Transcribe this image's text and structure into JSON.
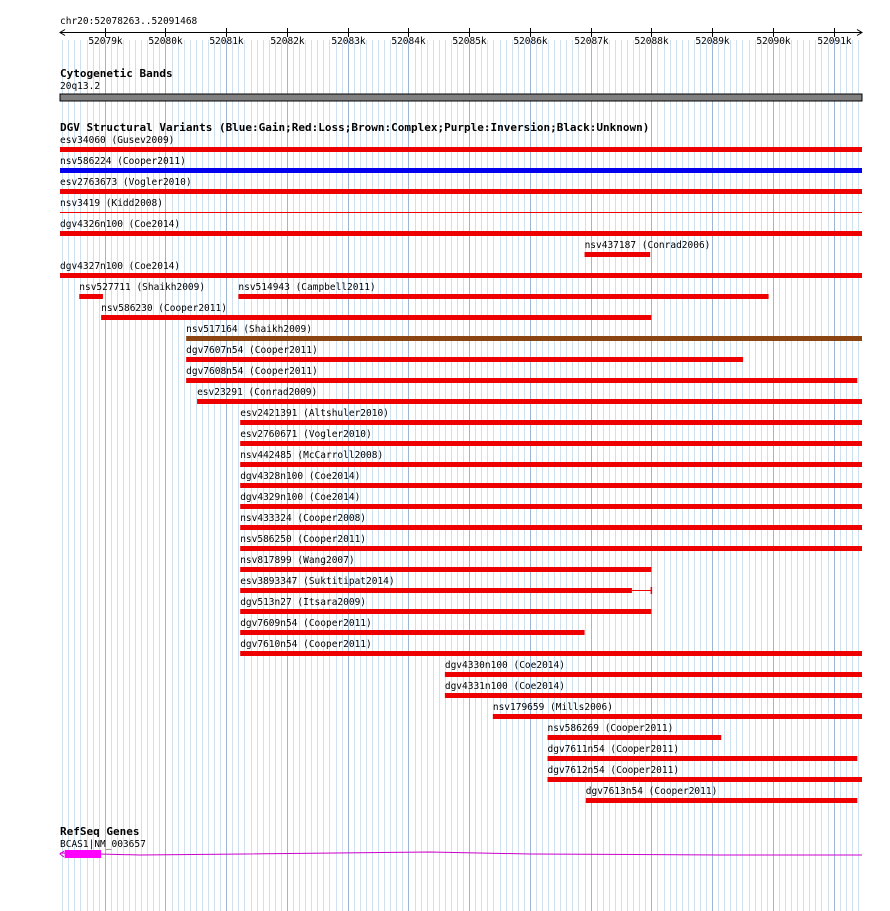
{
  "position": {
    "label": "chr20:52078263..52091468",
    "start": 52078263,
    "end": 52091468,
    "ticks": [
      "52079k",
      "52080k",
      "52081k",
      "52082k",
      "52083k",
      "52084k",
      "52085k",
      "52086k",
      "52087k",
      "52088k",
      "52089k",
      "52090k",
      "52091k"
    ]
  },
  "cytoband": {
    "title": "Cytogenetic Bands",
    "band": "20q13.2",
    "band_start": 52078263,
    "band_end": 52091468,
    "color": "#808080"
  },
  "dgv": {
    "title": "DGV Structural Variants (Blue:Gain;Red:Loss;Brown:Complex;Purple:Inversion;Black:Unknown)",
    "colors": {
      "gain": "#0000ee",
      "loss": "#ee0000",
      "complex": "#8b4513"
    },
    "variants": [
      {
        "label": "esv34060 (Gusev2009)",
        "type": "loss",
        "start": 52078263,
        "end": 52091468
      },
      {
        "label": "nsv586224 (Cooper2011)",
        "type": "gain",
        "start": 52078263,
        "end": 52091468
      },
      {
        "label": "esv2763673 (Vogler2010)",
        "type": "loss",
        "start": 52078263,
        "end": 52091468
      },
      {
        "label": "nsv3419 (Kidd2008)",
        "type": "loss",
        "start": 52078263,
        "end": 52091468,
        "thin": true
      },
      {
        "label": "dgv4326n100 (Coe2014)",
        "type": "loss",
        "start": 52078263,
        "end": 52091468
      },
      {
        "label": "nsv437187 (Conrad2006)",
        "type": "loss",
        "start": 52086900,
        "end": 52087980
      },
      {
        "label": "dgv4327n100 (Coe2014)",
        "type": "loss",
        "start": 52078263,
        "end": 52091468
      },
      {
        "label": "nsv527711 (Shaikh2009)",
        "type": "loss",
        "start": 52078580,
        "end": 52078970,
        "row": 7
      },
      {
        "label": "nsv514943 (Campbell2011)",
        "type": "loss",
        "start": 52081200,
        "end": 52089930,
        "row": 7
      },
      {
        "label": "nsv586230 (Cooper2011)",
        "type": "loss",
        "start": 52078940,
        "end": 52088000
      },
      {
        "label": "nsv517164 (Shaikh2009)",
        "type": "complex",
        "start": 52080340,
        "end": 52091468
      },
      {
        "label": "dgv7607n54 (Cooper2011)",
        "type": "loss",
        "start": 52080340,
        "end": 52089510
      },
      {
        "label": "dgv7608n54 (Cooper2011)",
        "type": "loss",
        "start": 52080340,
        "end": 52091390
      },
      {
        "label": "esv23291 (Conrad2009)",
        "type": "loss",
        "start": 52080520,
        "end": 52091468
      },
      {
        "label": "esv2421391 (Altshuler2010)",
        "type": "loss",
        "start": 52081230,
        "end": 52091468
      },
      {
        "label": "esv2760671 (Vogler2010)",
        "type": "loss",
        "start": 52081230,
        "end": 52091468
      },
      {
        "label": "nsv442485 (McCarroll2008)",
        "type": "loss",
        "start": 52081230,
        "end": 52091468
      },
      {
        "label": "dgv4328n100 (Coe2014)",
        "type": "loss",
        "start": 52081230,
        "end": 52091468
      },
      {
        "label": "dgv4329n100 (Coe2014)",
        "type": "loss",
        "start": 52081230,
        "end": 52091468
      },
      {
        "label": "nsv433324 (Cooper2008)",
        "type": "loss",
        "start": 52081230,
        "end": 52091468
      },
      {
        "label": "nsv586250 (Cooper2011)",
        "type": "loss",
        "start": 52081230,
        "end": 52091468
      },
      {
        "label": "nsv817899 (Wang2007)",
        "type": "loss",
        "start": 52081230,
        "end": 52088000
      },
      {
        "label": "esv3893347 (Suktitipat2014)",
        "type": "loss",
        "start": 52081230,
        "end": 52087680,
        "ext_end": 52088000
      },
      {
        "label": "dgv513n27 (Itsara2009)",
        "type": "loss",
        "start": 52081230,
        "end": 52088000
      },
      {
        "label": "dgv7609n54 (Cooper2011)",
        "type": "loss",
        "start": 52081230,
        "end": 52086900
      },
      {
        "label": "dgv7610n54 (Cooper2011)",
        "type": "loss",
        "start": 52081230,
        "end": 52091468
      },
      {
        "label": "dgv4330n100 (Coe2014)",
        "type": "loss",
        "start": 52084600,
        "end": 52091468
      },
      {
        "label": "dgv4331n100 (Coe2014)",
        "type": "loss",
        "start": 52084600,
        "end": 52091468
      },
      {
        "label": "nsv179659 (Mills2006)",
        "type": "loss",
        "start": 52085390,
        "end": 52091468
      },
      {
        "label": "nsv586269 (Cooper2011)",
        "type": "loss",
        "start": 52086290,
        "end": 52089150
      },
      {
        "label": "dgv7611n54 (Cooper2011)",
        "type": "loss",
        "start": 52086290,
        "end": 52091390
      },
      {
        "label": "dgv7612n54 (Cooper2011)",
        "type": "loss",
        "start": 52086290,
        "end": 52091468
      },
      {
        "label": "dgv7613n54 (Cooper2011)",
        "type": "loss",
        "start": 52086920,
        "end": 52091390
      }
    ]
  },
  "refseq": {
    "title": "RefSeq Genes",
    "gene_label": "BCAS1|NM_003657",
    "exon_color": "#ff00ff",
    "intron_color": "#cc00cc",
    "exon_start": 52078340,
    "exon_end": 52078940
  }
}
